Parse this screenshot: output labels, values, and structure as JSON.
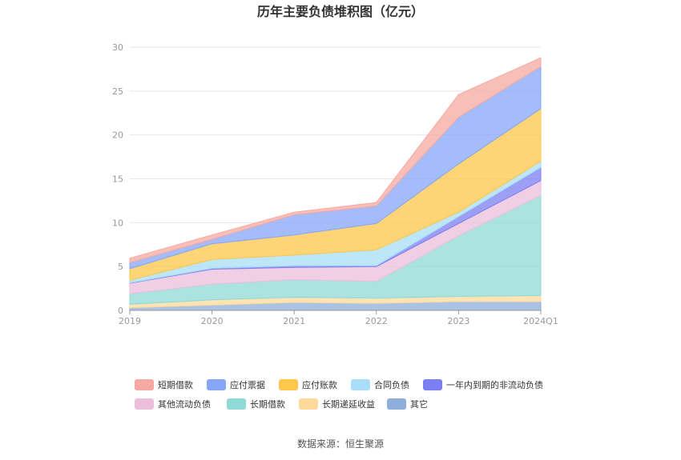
{
  "chart_data": {
    "type": "area",
    "stacked": true,
    "title": "历年主要负债堆积图（亿元）",
    "categories": [
      "2019",
      "2020",
      "2021",
      "2022",
      "2023",
      "2024Q1"
    ],
    "ylim": [
      0,
      30
    ],
    "yticks": [
      "0",
      "5",
      "10",
      "15",
      "20",
      "25",
      "30"
    ],
    "grid": true,
    "legend_position": "bottom",
    "series": [
      {
        "name": "其它",
        "color": "#8eaedb",
        "values": [
          0.3,
          0.6,
          0.9,
          0.8,
          1.0,
          1.0
        ]
      },
      {
        "name": "长期递延收益",
        "color": "#fdd99b",
        "values": [
          0.4,
          0.6,
          0.6,
          0.6,
          0.6,
          0.7
        ]
      },
      {
        "name": "长期借款",
        "color": "#8fd9d6",
        "values": [
          1.2,
          1.8,
          2.0,
          1.9,
          6.9,
          11.4
        ]
      },
      {
        "name": "其他流动负债",
        "color": "#ebbfdc",
        "values": [
          1.2,
          1.7,
          1.4,
          1.7,
          1.4,
          1.7
        ]
      },
      {
        "name": "一年内到期的非流动负债",
        "color": "#7c7ff2",
        "values": [
          0.05,
          0.1,
          0.2,
          0.1,
          0.8,
          1.5
        ]
      },
      {
        "name": "合同负债",
        "color": "#a8def7",
        "values": [
          0.3,
          1.0,
          1.2,
          1.8,
          0.5,
          0.7
        ]
      },
      {
        "name": "应付账款",
        "color": "#fcc74a",
        "values": [
          1.3,
          1.8,
          2.3,
          3.0,
          5.5,
          6.0
        ]
      },
      {
        "name": "应付票据",
        "color": "#87a6f8",
        "values": [
          0.7,
          0.5,
          2.3,
          2.0,
          5.3,
          4.8
        ]
      },
      {
        "name": "短期借款",
        "color": "#f6a9a2",
        "values": [
          0.5,
          0.5,
          0.3,
          0.4,
          2.6,
          1.0
        ]
      }
    ],
    "legend_order": [
      "短期借款",
      "应付票据",
      "应付账款",
      "合同负债",
      "一年内到期的非流动负债",
      "其他流动负债",
      "长期借款",
      "长期递延收益",
      "其它"
    ]
  },
  "footer": {
    "source": "数据来源：恒生聚源"
  }
}
